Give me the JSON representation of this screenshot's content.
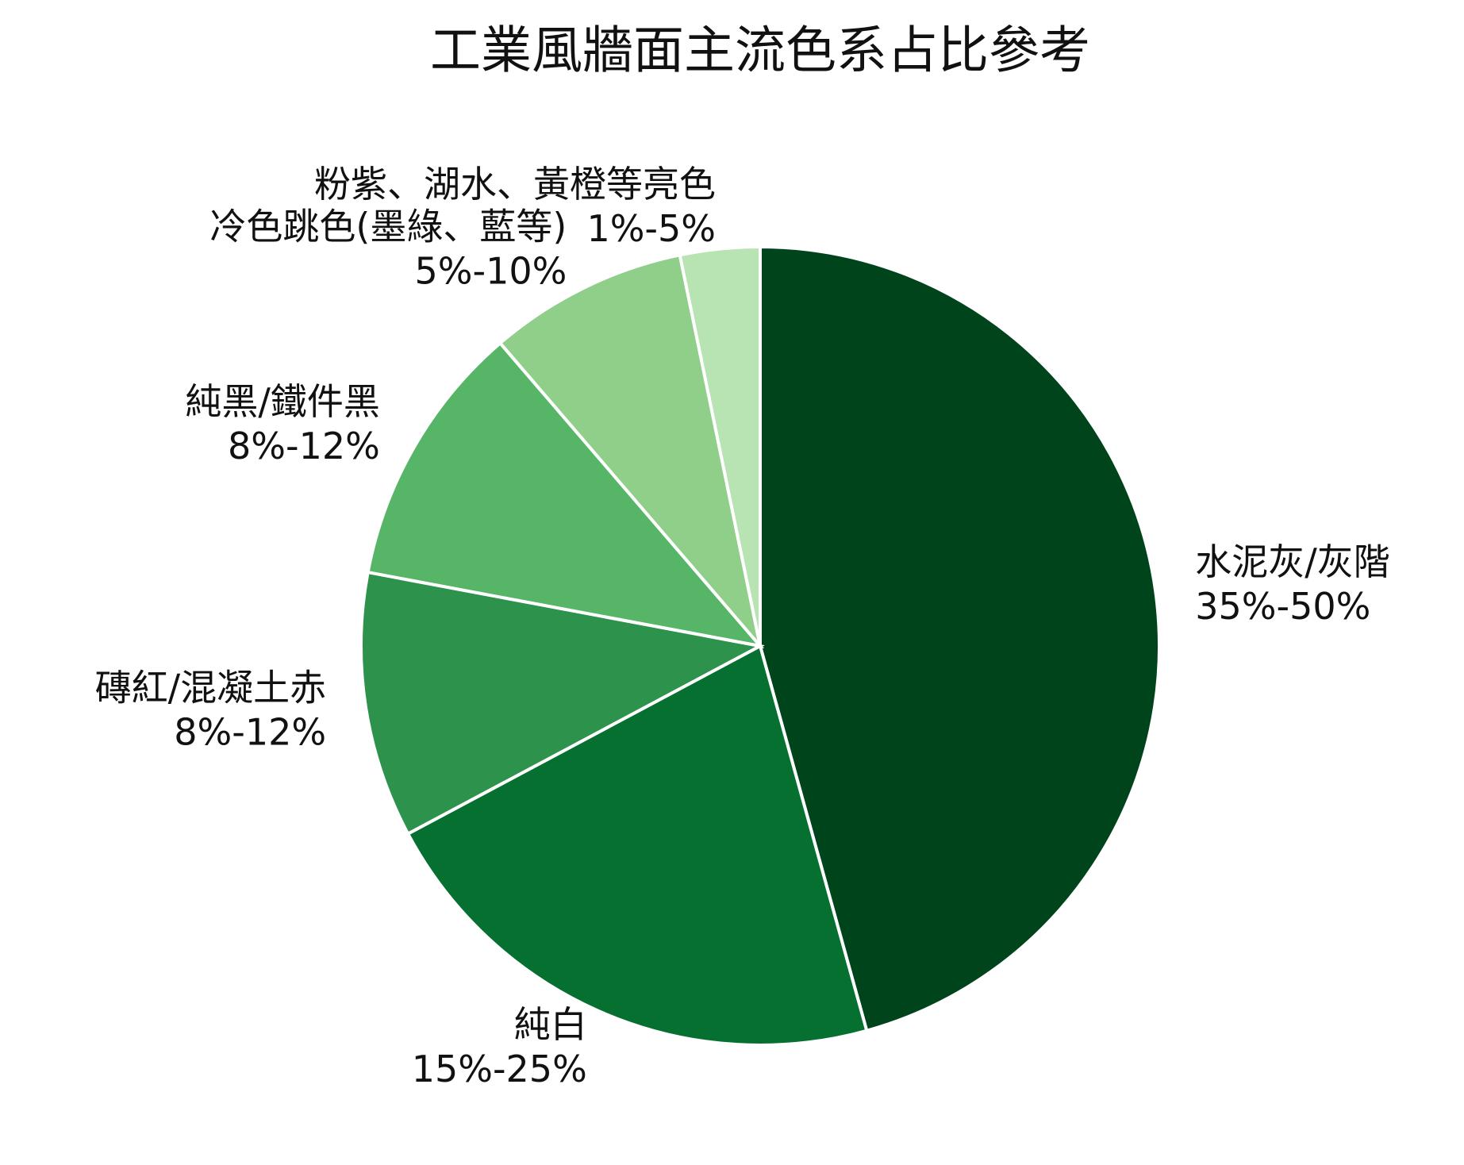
{
  "chart_data": {
    "type": "pie",
    "title": "工業風牆面主流色系占比參考",
    "categories": [
      "水泥灰/灰階",
      "純白",
      "磚紅/混凝土赤",
      "純黑/鐵件黑",
      "冷色跳色(墨綠、藍等)",
      "粉紫、湖水、黃橙等亮色"
    ],
    "values": [
      42.5,
      20,
      10,
      10,
      7.5,
      3
    ],
    "value_labels": [
      "35%-50%",
      "15%-25%",
      "8%-12%",
      "8%-12%",
      "5%-10%",
      "1%-5%"
    ],
    "colors": [
      "#00441b",
      "#067030",
      "#2d924b",
      "#56b567",
      "#8fcf89",
      "#b8e3b2"
    ]
  }
}
